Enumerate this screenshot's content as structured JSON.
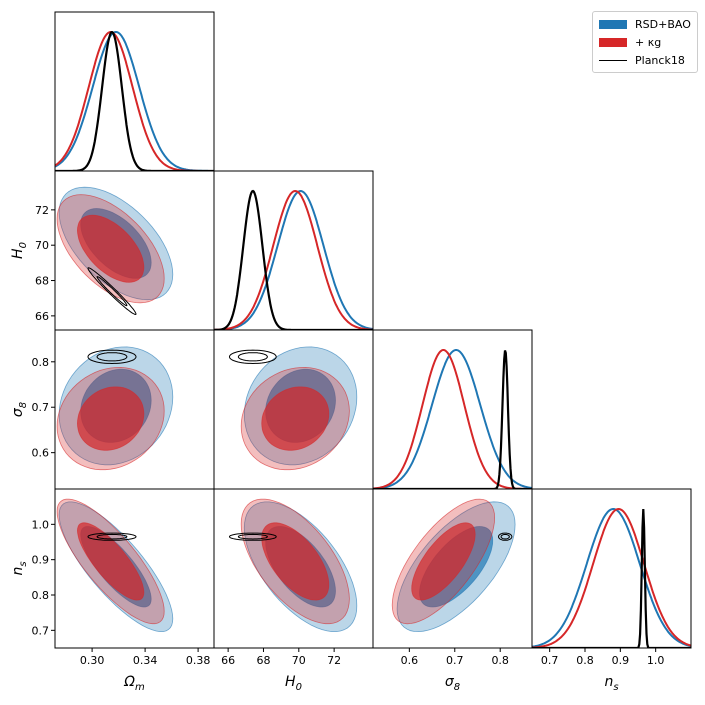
{
  "legend": {
    "items": [
      {
        "label": "RSD+BAO",
        "color": "#1f77b4"
      },
      {
        "label": "+ κg",
        "color": "#d62728"
      },
      {
        "label": "Planck18",
        "color": "#000000"
      }
    ]
  },
  "chart_data": {
    "type": "corner",
    "parameters": [
      {
        "key": "om",
        "label": "Ωm",
        "ticks": [
          0.3,
          0.34,
          0.38
        ],
        "tick_labels": [
          "0.30",
          "0.34",
          "0.38"
        ],
        "range": [
          0.272,
          0.392
        ]
      },
      {
        "key": "h0",
        "label": "H0",
        "ticks": [
          66,
          68,
          70,
          72
        ],
        "tick_labels": [
          "66",
          "68",
          "70",
          "72"
        ],
        "range": [
          65.2,
          74.2
        ]
      },
      {
        "key": "s8",
        "label": "σ8",
        "ticks": [
          0.6,
          0.7,
          0.8
        ],
        "tick_labels": [
          "0.6",
          "0.7",
          "0.8"
        ],
        "range": [
          0.52,
          0.87
        ]
      },
      {
        "key": "ns",
        "label": "ns",
        "ticks": [
          0.7,
          0.8,
          0.9,
          1.0
        ],
        "tick_labels": [
          "0.7",
          "0.8",
          "0.9",
          "1.0"
        ],
        "range": [
          0.65,
          1.1
        ]
      }
    ],
    "series": [
      {
        "name": "RSD+BAO",
        "color": "#1f77b4",
        "mean": {
          "om": 0.318,
          "h0": 70.1,
          "s8": 0.703,
          "ns": 0.88
        },
        "sigma": {
          "om": 0.0175,
          "h0": 1.3,
          "s8": 0.053,
          "ns": 0.075
        },
        "corr": {
          "om_h0": -0.55,
          "om_s8": 0.15,
          "om_ns": -0.8,
          "h0_s8": 0.15,
          "h0_ns": -0.6,
          "s8_ns": 0.65
        }
      },
      {
        "name": "+ κg",
        "color": "#d62728",
        "mean": {
          "om": 0.314,
          "h0": 69.8,
          "s8": 0.675,
          "ns": 0.895
        },
        "sigma": {
          "om": 0.0165,
          "h0": 1.25,
          "s8": 0.046,
          "ns": 0.072
        },
        "corr": {
          "om_h0": -0.55,
          "om_s8": 0.15,
          "om_ns": -0.8,
          "h0_s8": 0.15,
          "h0_ns": -0.6,
          "s8_ns": 0.7
        }
      },
      {
        "name": "Planck18",
        "color": "#000000",
        "mean": {
          "om": 0.315,
          "h0": 67.4,
          "s8": 0.811,
          "ns": 0.965
        },
        "sigma": {
          "om": 0.0074,
          "h0": 0.54,
          "s8": 0.006,
          "ns": 0.0042
        },
        "corr": {
          "om_h0": -0.98,
          "om_s8": 0.0,
          "om_ns": 0.0,
          "h0_s8": 0.0,
          "h0_ns": 0.0,
          "s8_ns": 0.0
        }
      }
    ],
    "contour_levels": [
      "68%",
      "95%"
    ]
  }
}
